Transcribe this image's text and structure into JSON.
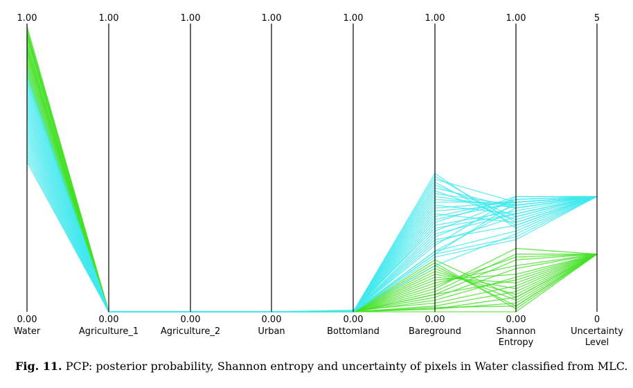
{
  "chart_data": {
    "type": "parallel_coordinates",
    "axes": [
      {
        "name": "Water",
        "min_label": "0.00",
        "max_label": "1.00",
        "range": [
          0,
          1
        ]
      },
      {
        "name": "Agriculture_1",
        "min_label": "0.00",
        "max_label": "1.00",
        "range": [
          0,
          1
        ]
      },
      {
        "name": "Agriculture_2",
        "min_label": "0.00",
        "max_label": "1.00",
        "range": [
          0,
          1
        ]
      },
      {
        "name": "Urban",
        "min_label": "0.00",
        "max_label": "1.00",
        "range": [
          0,
          1
        ]
      },
      {
        "name": "Bottomland",
        "min_label": "0.00",
        "max_label": "1.00",
        "range": [
          0,
          1
        ]
      },
      {
        "name": "Bareground",
        "min_label": "0.00",
        "max_label": "1.00",
        "range": [
          0,
          1
        ]
      },
      {
        "name": "Shannon\nEntropy",
        "min_label": "0.00",
        "max_label": "1.00",
        "range": [
          0,
          1
        ]
      },
      {
        "name": "Uncertainty\nLevel",
        "min_label": "0",
        "max_label": "5",
        "range": [
          0,
          5
        ]
      }
    ],
    "colors": {
      "uncertainty_level_1": "#44e024",
      "uncertainty_level_2": "#40e8ee",
      "axis": "#000000"
    },
    "series": [
      {
        "color": "#44e024",
        "values": [
          0.99,
          0,
          0,
          0,
          0,
          0.01,
          0.03,
          1
        ]
      },
      {
        "color": "#44e024",
        "values": [
          0.98,
          0,
          0,
          0,
          0,
          0.01,
          0.05,
          1
        ]
      },
      {
        "color": "#44e024",
        "values": [
          0.97,
          0,
          0,
          0,
          0,
          0.02,
          0.07,
          1
        ]
      },
      {
        "color": "#44e024",
        "values": [
          0.96,
          0,
          0,
          0,
          0.005,
          0.03,
          0.09,
          1
        ]
      },
      {
        "color": "#44e024",
        "values": [
          0.95,
          0,
          0,
          0,
          0,
          0.04,
          0.12,
          1
        ]
      },
      {
        "color": "#44e024",
        "values": [
          0.94,
          0,
          0,
          0,
          0,
          0.05,
          0.15,
          1
        ]
      },
      {
        "color": "#44e024",
        "values": [
          0.93,
          0,
          0,
          0,
          0,
          0.06,
          0.18,
          1
        ]
      },
      {
        "color": "#44e024",
        "values": [
          0.92,
          0,
          0,
          0,
          0,
          0.07,
          0.2,
          1
        ]
      },
      {
        "color": "#44e024",
        "values": [
          0.91,
          0,
          0,
          0,
          0,
          0.09,
          0.19,
          1
        ]
      },
      {
        "color": "#44e024",
        "values": [
          0.9,
          0,
          0,
          0,
          0,
          0.1,
          0.16,
          1
        ]
      },
      {
        "color": "#44e024",
        "values": [
          0.89,
          0,
          0,
          0,
          0,
          0.11,
          0.13,
          1
        ]
      },
      {
        "color": "#44e024",
        "values": [
          0.88,
          0,
          0,
          0,
          0,
          0.12,
          0.1,
          1
        ]
      },
      {
        "color": "#44e024",
        "values": [
          0.87,
          0,
          0,
          0,
          0,
          0.13,
          0.08,
          1
        ]
      },
      {
        "color": "#44e024",
        "values": [
          0.86,
          0,
          0,
          0,
          0,
          0.14,
          0.06,
          1
        ]
      },
      {
        "color": "#44e024",
        "values": [
          0.85,
          0,
          0,
          0,
          0,
          0.15,
          0.04,
          1
        ]
      },
      {
        "color": "#44e024",
        "values": [
          0.84,
          0,
          0,
          0,
          0,
          0.16,
          0.02,
          1
        ]
      },
      {
        "color": "#44e024",
        "values": [
          0.83,
          0,
          0,
          0,
          0,
          0.17,
          0.01,
          1
        ]
      },
      {
        "color": "#44e024",
        "values": [
          0.82,
          0,
          0,
          0,
          0,
          0.18,
          0.05,
          1
        ]
      },
      {
        "color": "#44e024",
        "values": [
          0.96,
          0,
          0,
          0,
          0,
          0,
          0,
          1
        ]
      },
      {
        "color": "#44e024",
        "values": [
          0.97,
          0,
          0,
          0,
          0,
          0.015,
          0.02,
          1
        ]
      },
      {
        "color": "#44e024",
        "values": [
          0.92,
          0,
          0,
          0,
          0,
          0.08,
          0.22,
          1
        ]
      },
      {
        "color": "#44e024",
        "values": [
          0.9,
          0,
          0,
          0,
          0,
          0.06,
          0.11,
          1
        ]
      },
      {
        "color": "#40e8ee",
        "values": [
          0.8,
          0,
          0,
          0,
          0,
          0.2,
          0.38,
          2
        ]
      },
      {
        "color": "#40e8ee",
        "values": [
          0.79,
          0,
          0,
          0,
          0,
          0.21,
          0.36,
          2
        ]
      },
      {
        "color": "#40e8ee",
        "values": [
          0.77,
          0,
          0,
          0,
          0,
          0.23,
          0.4,
          2
        ]
      },
      {
        "color": "#40e8ee",
        "values": [
          0.76,
          0,
          0,
          0,
          0,
          0.24,
          0.33,
          2
        ]
      },
      {
        "color": "#40e8ee",
        "values": [
          0.74,
          0,
          0,
          0,
          0,
          0.26,
          0.37,
          2
        ]
      },
      {
        "color": "#40e8ee",
        "values": [
          0.72,
          0,
          0,
          0,
          0,
          0.28,
          0.39,
          2
        ]
      },
      {
        "color": "#40e8ee",
        "values": [
          0.7,
          0,
          0,
          0,
          0,
          0.3,
          0.35,
          2
        ]
      },
      {
        "color": "#40e8ee",
        "values": [
          0.68,
          0,
          0,
          0,
          0,
          0.32,
          0.38,
          2
        ]
      },
      {
        "color": "#40e8ee",
        "values": [
          0.66,
          0,
          0,
          0,
          0,
          0.34,
          0.31,
          2
        ]
      },
      {
        "color": "#40e8ee",
        "values": [
          0.65,
          0,
          0,
          0,
          0,
          0.35,
          0.37,
          2
        ]
      },
      {
        "color": "#40e8ee",
        "values": [
          0.63,
          0,
          0,
          0,
          0,
          0.37,
          0.34,
          2
        ]
      },
      {
        "color": "#40e8ee",
        "values": [
          0.62,
          0,
          0,
          0,
          0,
          0.38,
          0.38,
          2
        ]
      },
      {
        "color": "#40e8ee",
        "values": [
          0.6,
          0,
          0,
          0,
          0,
          0.4,
          0.36,
          2
        ]
      },
      {
        "color": "#40e8ee",
        "values": [
          0.58,
          0,
          0,
          0,
          0,
          0.42,
          0.32,
          2
        ]
      },
      {
        "color": "#40e8ee",
        "values": [
          0.56,
          0,
          0,
          0,
          0,
          0.44,
          0.33,
          2
        ]
      },
      {
        "color": "#40e8ee",
        "values": [
          0.55,
          0,
          0,
          0,
          0,
          0.45,
          0.3,
          2
        ]
      },
      {
        "color": "#40e8ee",
        "values": [
          0.53,
          0,
          0,
          0,
          0,
          0.47,
          0.31,
          2
        ]
      },
      {
        "color": "#40e8ee",
        "values": [
          0.52,
          0,
          0,
          0,
          0,
          0.48,
          0.29,
          2
        ]
      },
      {
        "color": "#40e8ee",
        "values": [
          0.84,
          0,
          0,
          0,
          0,
          0.16,
          0.27,
          2
        ]
      },
      {
        "color": "#40e8ee",
        "values": [
          0.81,
          0,
          0,
          0,
          0,
          0.19,
          0.25,
          2
        ]
      },
      {
        "color": "#40e8ee",
        "values": [
          0.78,
          0,
          0,
          0,
          0,
          0.21,
          0.28,
          2
        ]
      },
      {
        "color": "#40e8ee",
        "values": [
          0.75,
          0,
          0,
          0,
          0,
          0.25,
          0.3,
          2
        ]
      },
      {
        "color": "#40e8ee",
        "values": [
          0.73,
          0,
          0,
          0,
          0,
          0.27,
          0.34,
          2
        ]
      },
      {
        "color": "#40e8ee",
        "values": [
          0.69,
          0,
          0,
          0,
          0,
          0.31,
          0.4,
          2
        ]
      },
      {
        "color": "#40e8ee",
        "values": [
          0.67,
          0,
          0,
          0,
          0,
          0.33,
          0.39,
          2
        ]
      },
      {
        "color": "#40e8ee",
        "values": [
          0.64,
          0,
          0,
          0,
          0,
          0.36,
          0.38,
          2
        ]
      },
      {
        "color": "#40e8ee",
        "values": [
          0.61,
          0,
          0,
          0,
          0,
          0.39,
          0.37,
          2
        ]
      },
      {
        "color": "#40e8ee",
        "values": [
          0.59,
          0,
          0,
          0,
          0,
          0.41,
          0.37,
          2
        ]
      },
      {
        "color": "#40e8ee",
        "values": [
          0.57,
          0,
          0,
          0,
          0,
          0.43,
          0.36,
          2
        ]
      },
      {
        "color": "#40e8ee",
        "values": [
          0.54,
          0,
          0,
          0,
          0,
          0.46,
          0.38,
          2
        ]
      },
      {
        "color": "#40e8ee",
        "values": [
          0.71,
          0,
          0,
          0,
          0.005,
          0.29,
          0.34,
          2
        ]
      },
      {
        "color": "#40e8ee",
        "values": [
          0.8,
          0,
          0,
          0,
          0,
          0.2,
          0.26,
          2
        ]
      }
    ]
  },
  "caption": {
    "label": "Fig. 11.",
    "text": " PCP: posterior probability, Shannon entropy and uncertainty of pixels in Water classified from MLC."
  }
}
